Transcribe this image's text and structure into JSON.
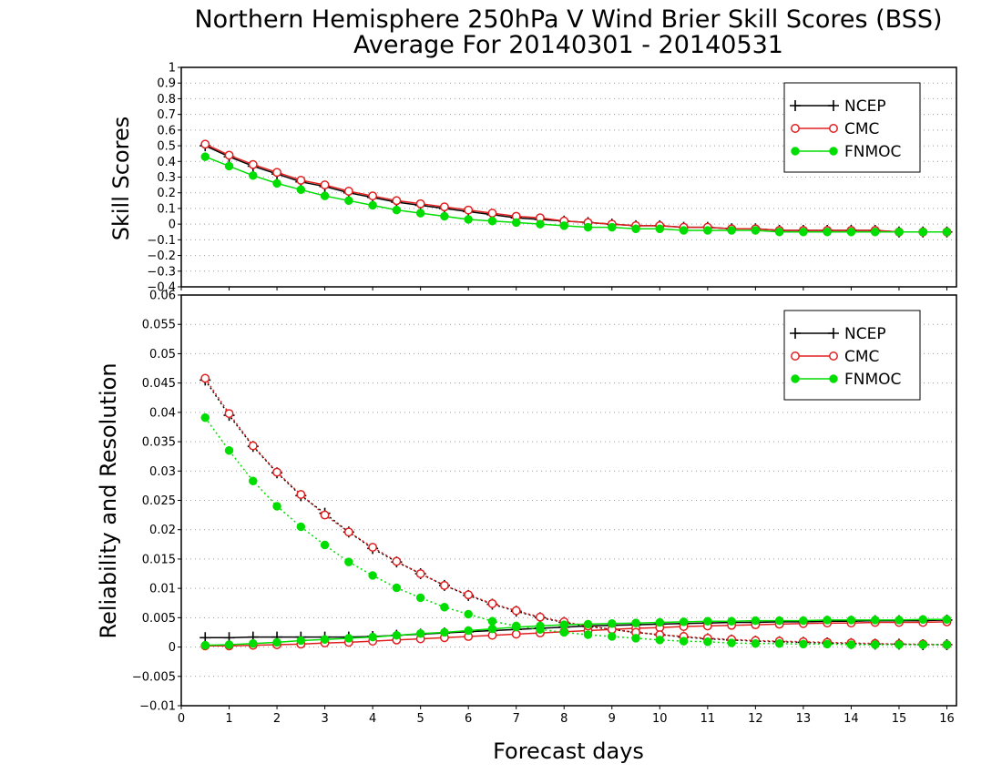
{
  "chart_data": {
    "title": "Northern Hemisphere 250hPa V Wind Brier Skill Scores (BSS)",
    "subtitle": "Average For 20140301 - 20140531",
    "xlabel": "Forecast days",
    "xlim": [
      0,
      16.2
    ],
    "xticks": [
      "0",
      "1",
      "2",
      "3",
      "4",
      "5",
      "6",
      "7",
      "8",
      "9",
      "10",
      "11",
      "12",
      "13",
      "14",
      "15",
      "16"
    ],
    "x": [
      0.5,
      1,
      1.5,
      2,
      2.5,
      3,
      3.5,
      4,
      4.5,
      5,
      5.5,
      6,
      6.5,
      7,
      7.5,
      8,
      8.5,
      9,
      9.5,
      10,
      10.5,
      11,
      11.5,
      12,
      12.5,
      13,
      13.5,
      14,
      14.5,
      15,
      15.5,
      16
    ],
    "panels": [
      {
        "type": "line",
        "ylabel": "Skill Scores",
        "ylim": [
          -0.4,
          1
        ],
        "yticks": [
          "1",
          "0.9",
          "0.8",
          "0.7",
          "0.6",
          "0.5",
          "0.4",
          "0.3",
          "0.2",
          "0.1",
          "0",
          "−0.1",
          "−0.2",
          "−0.3",
          "−0.4"
        ],
        "grid": true,
        "legend": "top-right",
        "series": [
          {
            "name": "NCEP",
            "color": "#000000",
            "marker": "plus",
            "style": "solid",
            "values": [
              0.5,
              0.43,
              0.37,
              0.32,
              0.27,
              0.24,
              0.2,
              0.17,
              0.14,
              0.12,
              0.1,
              0.08,
              0.06,
              0.04,
              0.03,
              0.02,
              0.01,
              0.0,
              -0.01,
              -0.01,
              -0.02,
              -0.02,
              -0.03,
              -0.03,
              -0.04,
              -0.04,
              -0.04,
              -0.04,
              -0.04,
              -0.05,
              -0.05,
              -0.05
            ]
          },
          {
            "name": "CMC",
            "color": "#e02020",
            "marker": "open-circle",
            "style": "solid",
            "values": [
              0.51,
              0.44,
              0.38,
              0.33,
              0.28,
              0.25,
              0.21,
              0.18,
              0.15,
              0.13,
              0.11,
              0.09,
              0.07,
              0.05,
              0.04,
              0.02,
              0.01,
              0.0,
              -0.01,
              -0.01,
              -0.02,
              -0.02,
              -0.03,
              -0.03,
              -0.04,
              -0.04,
              -0.04,
              -0.04,
              -0.04,
              -0.05,
              -0.05,
              -0.05
            ]
          },
          {
            "name": "FNMOC",
            "color": "#00dd00",
            "marker": "filled-circle",
            "style": "solid",
            "values": [
              0.43,
              0.37,
              0.31,
              0.26,
              0.22,
              0.18,
              0.15,
              0.12,
              0.09,
              0.07,
              0.05,
              0.03,
              0.02,
              0.01,
              0.0,
              -0.01,
              -0.02,
              -0.02,
              -0.03,
              -0.03,
              -0.04,
              -0.04,
              -0.04,
              -0.04,
              -0.05,
              -0.05,
              -0.05,
              -0.05,
              -0.05,
              -0.05,
              -0.05,
              -0.05
            ]
          }
        ]
      },
      {
        "type": "line",
        "ylabel": "Reliability and Resolution",
        "ylim": [
          -0.01,
          0.06
        ],
        "yticks": [
          "0.06",
          "0.055",
          "0.05",
          "0.045",
          "0.04",
          "0.035",
          "0.03",
          "0.025",
          "0.02",
          "0.015",
          "0.01",
          "0.005",
          "0",
          "−0.005",
          "−0.01"
        ],
        "grid": true,
        "legend": "top-right",
        "series": [
          {
            "name": "NCEP",
            "color": "#000000",
            "marker": "plus",
            "style": "solid",
            "role": "resolution",
            "values": [
              0.0016,
              0.0016,
              0.0017,
              0.0017,
              0.0017,
              0.0017,
              0.0017,
              0.0018,
              0.002,
              0.0022,
              0.0024,
              0.0026,
              0.0028,
              0.003,
              0.0032,
              0.0034,
              0.0036,
              0.0037,
              0.0038,
              0.0039,
              0.004,
              0.0041,
              0.0042,
              0.0042,
              0.0043,
              0.0043,
              0.0044,
              0.0044,
              0.0045,
              0.0045,
              0.0045,
              0.0046
            ]
          },
          {
            "name": "NCEP",
            "color": "#000000",
            "marker": "plus",
            "style": "dotted",
            "role": "reliability",
            "values": [
              0.0455,
              0.0395,
              0.0342,
              0.0297,
              0.0258,
              0.0228,
              0.0196,
              0.0168,
              0.0145,
              0.0125,
              0.0105,
              0.0088,
              0.0073,
              0.0061,
              0.005,
              0.0042,
              0.0035,
              0.003,
              0.0025,
              0.0021,
              0.0017,
              0.0014,
              0.0012,
              0.001,
              0.0009,
              0.0008,
              0.0007,
              0.0006,
              0.0005,
              0.0005,
              0.0004,
              0.0004
            ]
          },
          {
            "name": "CMC",
            "color": "#e02020",
            "marker": "open-circle",
            "style": "solid",
            "role": "resolution",
            "values": [
              0.0002,
              0.0002,
              0.0003,
              0.0004,
              0.0005,
              0.0007,
              0.0008,
              0.001,
              0.0012,
              0.0014,
              0.0016,
              0.0018,
              0.002,
              0.0022,
              0.0024,
              0.0026,
              0.0028,
              0.003,
              0.0032,
              0.0033,
              0.0035,
              0.0036,
              0.0037,
              0.0038,
              0.0039,
              0.004,
              0.0041,
              0.0041,
              0.0042,
              0.0042,
              0.0042,
              0.0043
            ]
          },
          {
            "name": "CMC",
            "color": "#e02020",
            "marker": "open-circle",
            "style": "dotted",
            "role": "reliability",
            "values": [
              0.0458,
              0.0398,
              0.0343,
              0.0298,
              0.026,
              0.0225,
              0.0196,
              0.017,
              0.0146,
              0.0125,
              0.0105,
              0.0089,
              0.0074,
              0.0062,
              0.0051,
              0.0043,
              0.0036,
              0.003,
              0.0025,
              0.0021,
              0.0018,
              0.0015,
              0.0013,
              0.0011,
              0.001,
              0.0009,
              0.0008,
              0.0007,
              0.0006,
              0.0005,
              0.0005,
              0.0004
            ]
          },
          {
            "name": "FNMOC",
            "color": "#00dd00",
            "marker": "filled-circle",
            "style": "solid",
            "role": "resolution",
            "values": [
              0.0003,
              0.0004,
              0.0006,
              0.0008,
              0.0011,
              0.0013,
              0.0015,
              0.0017,
              0.002,
              0.0023,
              0.0025,
              0.0028,
              0.0031,
              0.0034,
              0.0036,
              0.0038,
              0.0039,
              0.004,
              0.0041,
              0.0042,
              0.0043,
              0.0044,
              0.0044,
              0.0045,
              0.0045,
              0.0045,
              0.0046,
              0.0046,
              0.0046,
              0.0046,
              0.0047,
              0.0047
            ]
          },
          {
            "name": "FNMOC",
            "color": "#00dd00",
            "marker": "filled-circle",
            "style": "dotted",
            "role": "reliability",
            "values": [
              0.0391,
              0.0335,
              0.0283,
              0.024,
              0.0205,
              0.0174,
              0.0145,
              0.0122,
              0.0101,
              0.0084,
              0.0068,
              0.0056,
              0.0044,
              0.0036,
              0.003,
              0.0025,
              0.0021,
              0.0018,
              0.0015,
              0.0012,
              0.001,
              0.0009,
              0.0007,
              0.0006,
              0.0006,
              0.0005,
              0.0005,
              0.0004,
              0.0004,
              0.0004,
              0.0004,
              0.0004
            ]
          }
        ]
      }
    ]
  }
}
